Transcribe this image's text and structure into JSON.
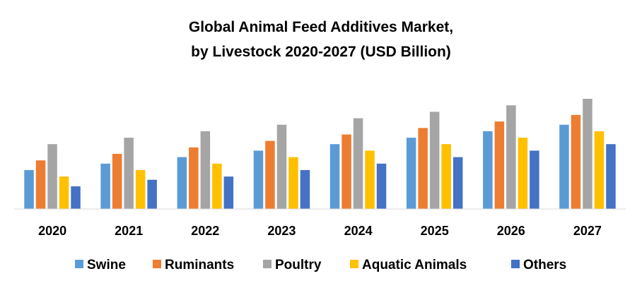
{
  "chart_data": {
    "type": "bar",
    "title": "Global Animal Feed Additives Market,",
    "subtitle": "by Livestock 2020-2027 (USD Billion)",
    "xlabel": "",
    "ylabel": "",
    "ylim": [
      0,
      17
    ],
    "grid": false,
    "legend_position": "bottom",
    "categories": [
      "2020",
      "2021",
      "2022",
      "2023",
      "2024",
      "2025",
      "2026",
      "2027"
    ],
    "series": [
      {
        "name": "Swine",
        "color": "#5B9BD5",
        "values": [
          6.0,
          7.0,
          8.0,
          9.0,
          10.0,
          11.0,
          12.0,
          13.0
        ]
      },
      {
        "name": "Ruminants",
        "color": "#ED7D31",
        "values": [
          7.5,
          8.5,
          9.5,
          10.5,
          11.5,
          12.5,
          13.5,
          14.5
        ]
      },
      {
        "name": "Poultry",
        "color": "#A5A5A5",
        "values": [
          10.0,
          11.0,
          12.0,
          13.0,
          14.0,
          15.0,
          16.0,
          17.0
        ]
      },
      {
        "name": "Aquatic Animals",
        "color": "#FFC000",
        "values": [
          5.0,
          6.0,
          7.0,
          8.0,
          9.0,
          10.0,
          11.0,
          12.0
        ]
      },
      {
        "name": "Others",
        "color": "#4472C4",
        "values": [
          3.5,
          4.5,
          5.0,
          6.0,
          7.0,
          8.0,
          9.0,
          10.0
        ]
      }
    ]
  }
}
